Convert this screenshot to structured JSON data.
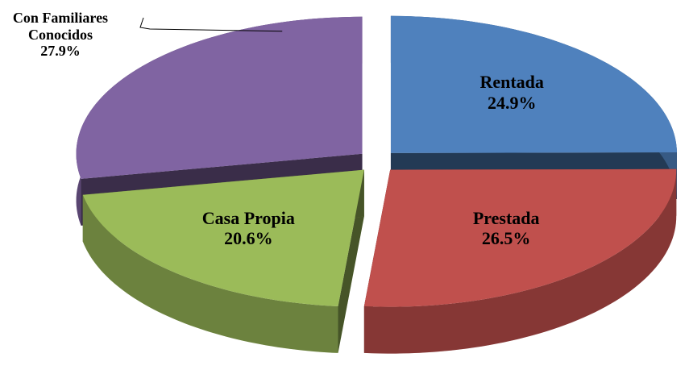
{
  "chart_data": {
    "type": "pie3d",
    "categories": [
      "Rentada",
      "Prestada",
      "Casa Propia",
      "Con Familiares Conocidos"
    ],
    "values": [
      24.9,
      26.5,
      20.6,
      27.9
    ],
    "value_labels": [
      "24.9%",
      "26.5%",
      "20.6%",
      "27.9%"
    ],
    "colors": [
      "#4f81bd",
      "#c0504d",
      "#9bbb59",
      "#8064a2"
    ]
  }
}
